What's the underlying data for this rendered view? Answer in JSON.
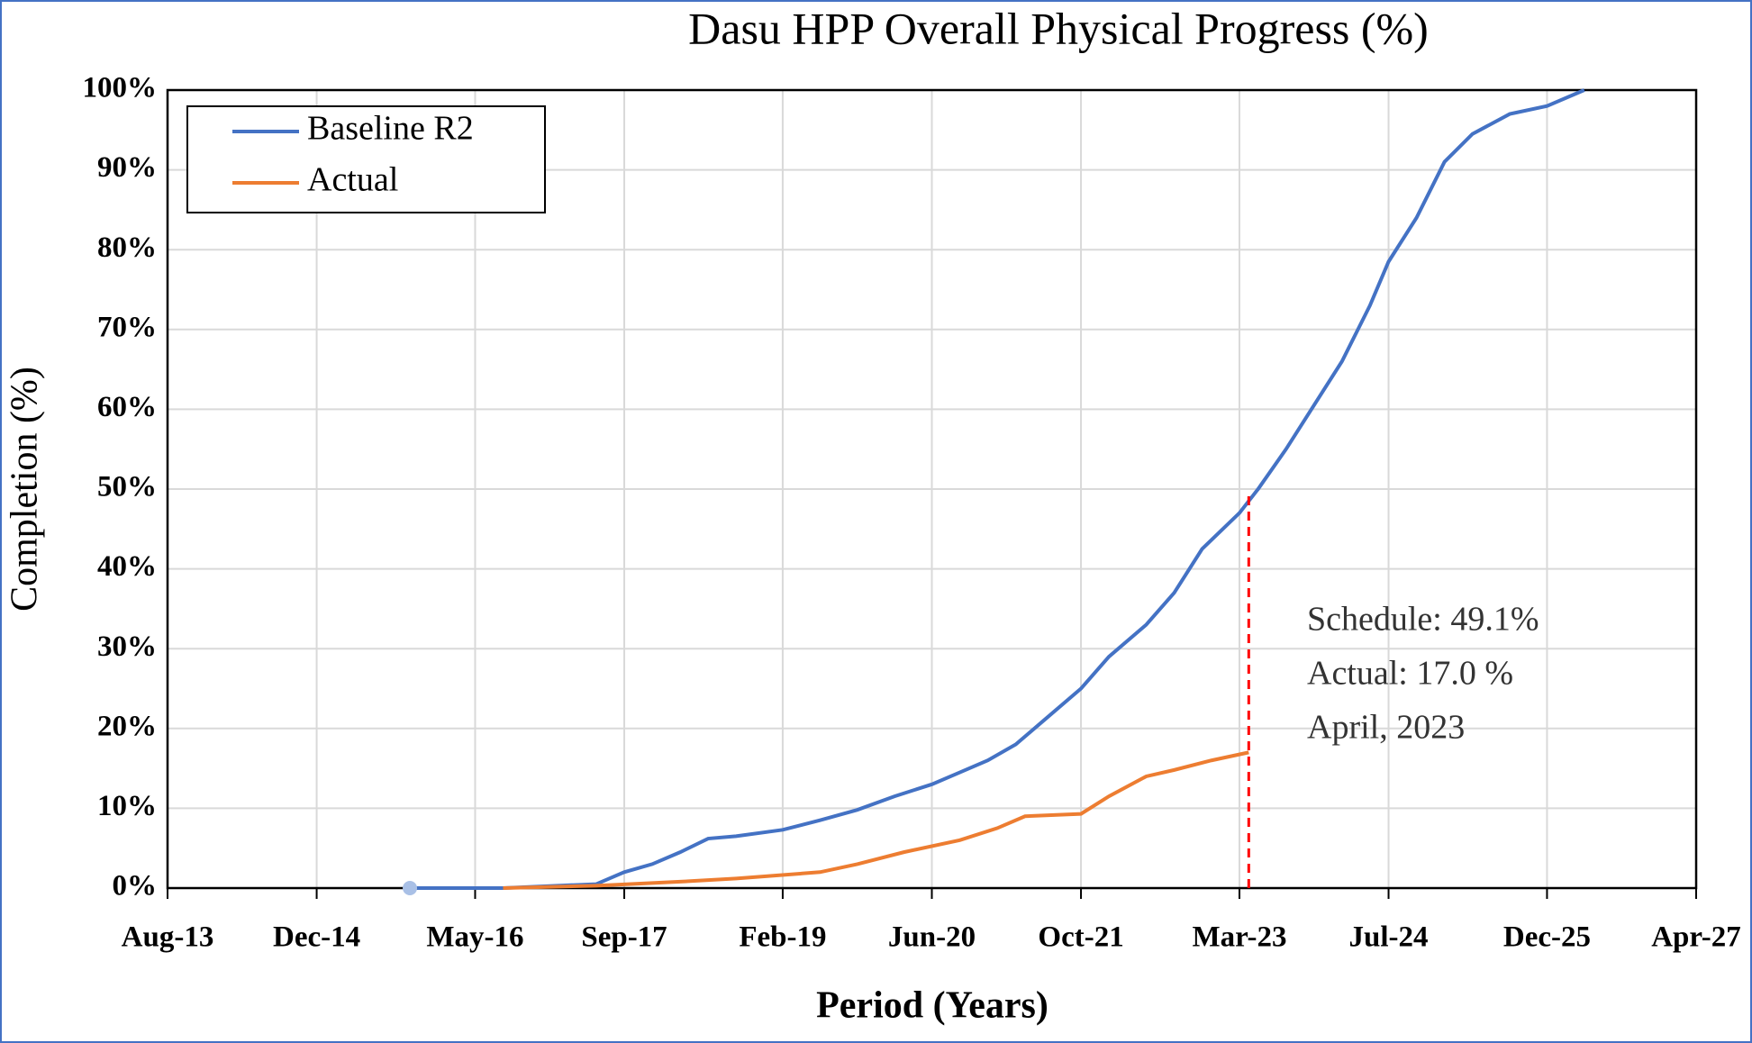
{
  "chart_data": {
    "type": "line",
    "title": "Dasu HPP Overall Physical Progress (%)",
    "x_label": "Period (Years)",
    "y_label": "Completion (%)",
    "xlim": [
      "2013-08",
      "2027-04"
    ],
    "xticks": [
      {
        "value": "2013-08",
        "label": "Aug-13"
      },
      {
        "value": "2014-12",
        "label": "Dec-14"
      },
      {
        "value": "2016-05",
        "label": "May-16"
      },
      {
        "value": "2017-09",
        "label": "Sep-17"
      },
      {
        "value": "2019-02",
        "label": "Feb-19"
      },
      {
        "value": "2020-06",
        "label": "Jun-20"
      },
      {
        "value": "2021-10",
        "label": "Oct-21"
      },
      {
        "value": "2023-03",
        "label": "Mar-23"
      },
      {
        "value": "2024-07",
        "label": "Jul-24"
      },
      {
        "value": "2025-12",
        "label": "Dec-25"
      },
      {
        "value": "2027-04",
        "label": "Apr-27"
      }
    ],
    "ylim": [
      0,
      100
    ],
    "yticks": [
      {
        "value": 0,
        "label": "0%"
      },
      {
        "value": 10,
        "label": "10%"
      },
      {
        "value": 20,
        "label": "20%"
      },
      {
        "value": 30,
        "label": "30%"
      },
      {
        "value": 40,
        "label": "40%"
      },
      {
        "value": 50,
        "label": "50%"
      },
      {
        "value": 60,
        "label": "60%"
      },
      {
        "value": 70,
        "label": "70%"
      },
      {
        "value": 80,
        "label": "80%"
      },
      {
        "value": 90,
        "label": "90%"
      },
      {
        "value": 100,
        "label": "100%"
      }
    ],
    "grid": true,
    "legend": "upper left",
    "series": [
      {
        "name": "Baseline R2",
        "color": "#4472c4",
        "x": [
          "2015-10",
          "2016-08",
          "2017-06",
          "2017-09",
          "2017-12",
          "2018-03",
          "2018-06",
          "2018-09",
          "2019-02",
          "2019-06",
          "2019-10",
          "2020-02",
          "2020-06",
          "2020-09",
          "2020-12",
          "2021-03",
          "2021-06",
          "2021-10",
          "2022-01",
          "2022-05",
          "2022-08",
          "2022-11",
          "2023-03",
          "2023-05",
          "2023-08",
          "2023-11",
          "2024-02",
          "2024-05",
          "2024-07",
          "2024-10",
          "2025-01",
          "2025-04",
          "2025-08",
          "2025-12",
          "2026-04"
        ],
        "values": [
          0,
          0,
          0.5,
          2,
          3,
          4.5,
          6.2,
          6.5,
          7.3,
          8.5,
          9.8,
          11.5,
          13,
          14.5,
          16,
          18,
          21,
          25,
          29,
          33,
          37,
          42.5,
          47,
          50,
          55,
          60.5,
          66,
          73,
          78.5,
          84,
          91,
          94.5,
          97,
          98,
          100
        ]
      },
      {
        "name": "Actual",
        "color": "#ed7d31",
        "x": [
          "2016-08",
          "2017-06",
          "2018-03",
          "2018-09",
          "2019-06",
          "2019-10",
          "2020-03",
          "2020-09",
          "2021-01",
          "2021-04",
          "2021-10",
          "2022-01",
          "2022-05",
          "2022-08",
          "2022-12",
          "2023-04"
        ],
        "values": [
          0,
          0.3,
          0.8,
          1.2,
          2,
          3,
          4.5,
          6,
          7.5,
          9,
          9.3,
          11.5,
          14,
          14.8,
          16,
          17
        ]
      }
    ],
    "marker": {
      "x": "2023-04",
      "value": 49.1,
      "color": "#ff0000"
    },
    "annotations": [
      "Schedule: 49.1%",
      "Actual: 17.0 %",
      "April, 2023"
    ]
  }
}
